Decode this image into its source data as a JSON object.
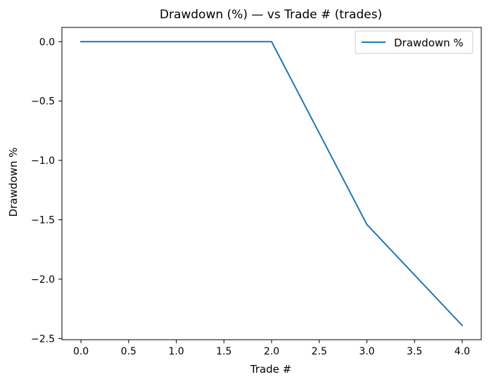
{
  "chart_data": {
    "type": "line",
    "title": "Drawdown (%) — vs Trade # (trades)",
    "xlabel": "Trade #",
    "ylabel": "Drawdown %",
    "x": [
      0,
      1,
      2,
      3,
      4
    ],
    "series": [
      {
        "name": "Drawdown %",
        "values": [
          0.0,
          0.0,
          0.0,
          -1.54,
          -2.39
        ]
      }
    ],
    "xlim": [
      -0.2,
      4.2
    ],
    "ylim": [
      -2.51,
      0.12
    ],
    "xticks": [
      0.0,
      0.5,
      1.0,
      1.5,
      2.0,
      2.5,
      3.0,
      3.5,
      4.0
    ],
    "xtick_labels": [
      "0.0",
      "0.5",
      "1.0",
      "1.5",
      "2.0",
      "2.5",
      "3.0",
      "3.5",
      "4.0"
    ],
    "yticks": [
      0.0,
      -0.5,
      -1.0,
      -1.5,
      -2.0,
      -2.5
    ],
    "ytick_labels": [
      "0.0",
      "−0.5",
      "−1.0",
      "−1.5",
      "−2.0",
      "−2.5"
    ],
    "grid": false,
    "legend_position": "top-right",
    "colors": {
      "series": "#1f77b4",
      "axes": "#000000",
      "legend_border": "#cccccc"
    }
  }
}
